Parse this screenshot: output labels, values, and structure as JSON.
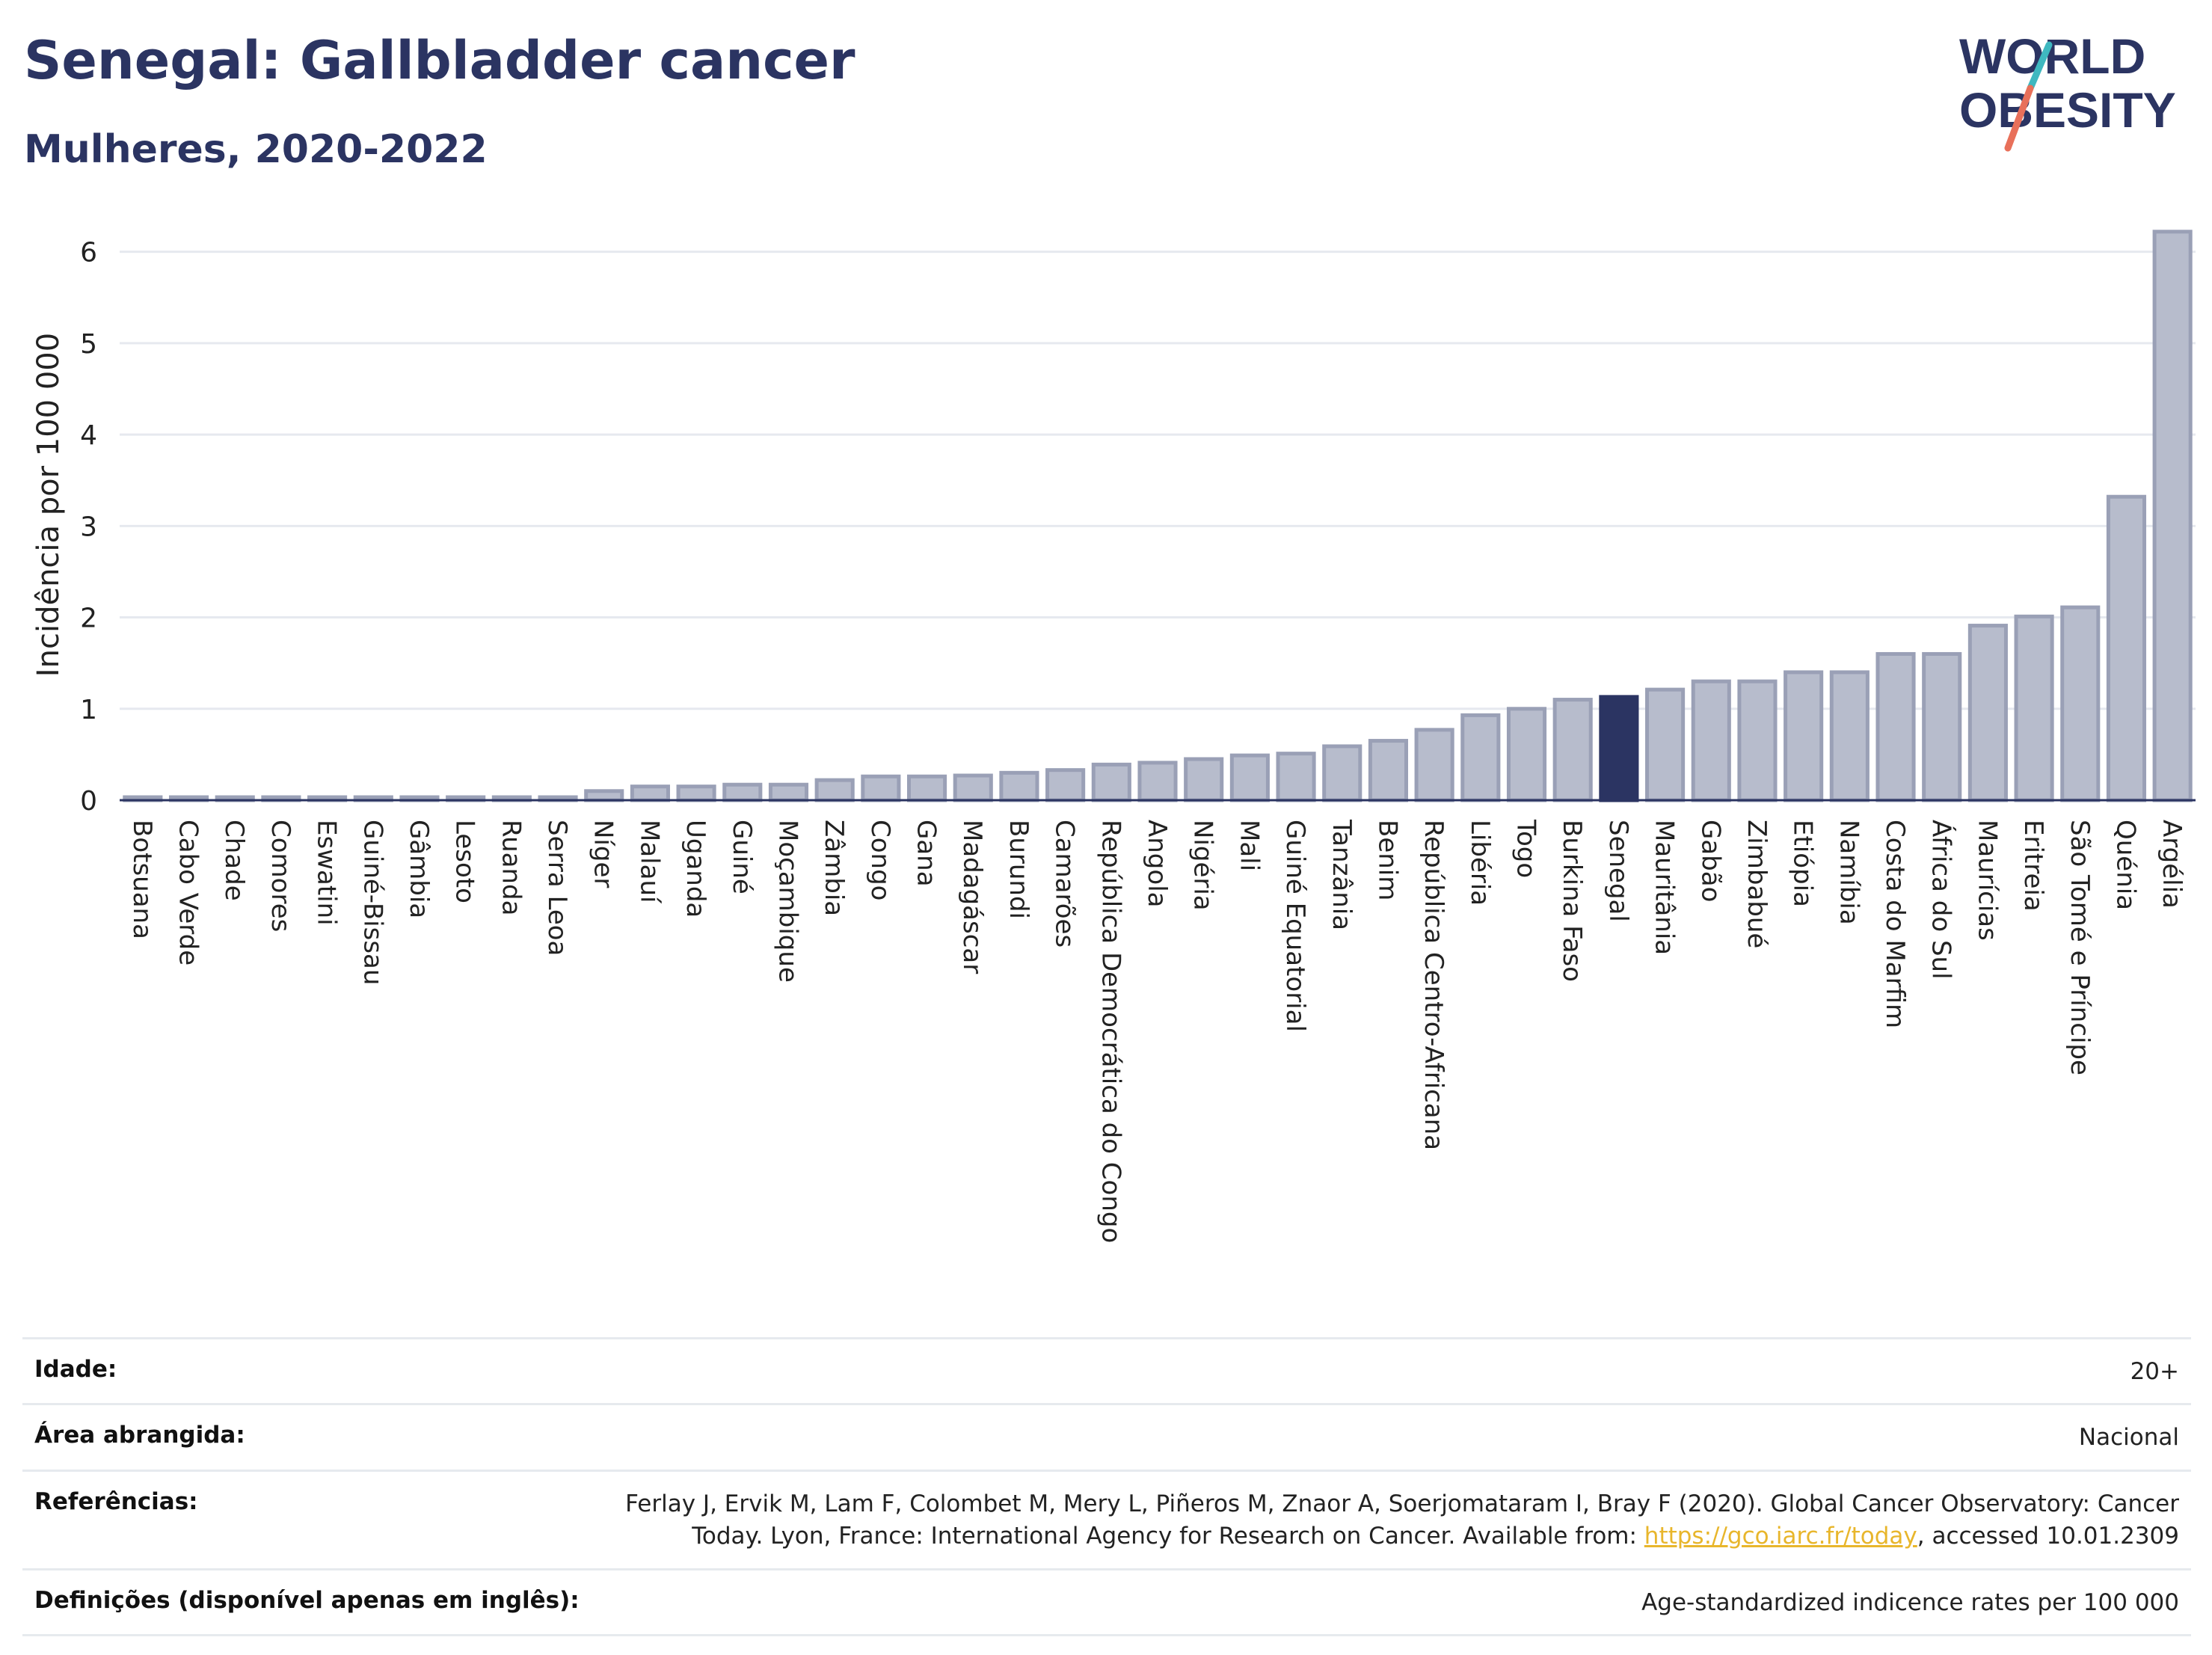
{
  "header": {
    "title": "Senegal: Gallbladder cancer",
    "subtitle": "Mulheres, 2020-2022"
  },
  "logo": {
    "line1": "WORLD",
    "line2": "OBESITY",
    "colors": {
      "text": "#2b3462",
      "slash_top": "#3fb8c0",
      "slash_bottom": "#e8705a"
    }
  },
  "chart_data": {
    "type": "bar",
    "ylabel": "Incidência por 100 000",
    "xlabel": "",
    "ylim": [
      0,
      6.3
    ],
    "yticks": [
      0,
      1,
      2,
      3,
      4,
      5,
      6
    ],
    "grid": true,
    "highlight": "Senegal",
    "colors": {
      "bar": "#b7bccc",
      "bar_border": "#9aa0b6",
      "highlight": "#2b3462",
      "highlight_border": "#2b3462",
      "grid": "#e6e9ef"
    },
    "categories": [
      "Botsuana",
      "Cabo Verde",
      "Chade",
      "Comores",
      "Eswatini",
      "Guiné-Bissau",
      "Gâmbia",
      "Lesoto",
      "Ruanda",
      "Serra Leoa",
      "Níger",
      "Malauí",
      "Uganda",
      "Guiné",
      "Moçambique",
      "Zâmbia",
      "Congo",
      "Gana",
      "Madagáscar",
      "Burundi",
      "Camarões",
      "República Democrática do Congo",
      "Angola",
      "Nigéria",
      "Mali",
      "Guiné Equatorial",
      "Tanzânia",
      "Benim",
      "República Centro-Africana",
      "Libéria",
      "Togo",
      "Burkina Faso",
      "Senegal",
      "Mauritânia",
      "Gabão",
      "Zimbabué",
      "Etiópia",
      "Namíbia",
      "Costa do Marfim",
      "África do Sul",
      "Maurícias",
      "Eritreia",
      "São Tomé e Príncipe",
      "Quénia",
      "Argélia"
    ],
    "values": [
      0.02,
      0.02,
      0.02,
      0.02,
      0.02,
      0.02,
      0.02,
      0.02,
      0.02,
      0.02,
      0.1,
      0.15,
      0.15,
      0.17,
      0.17,
      0.22,
      0.26,
      0.26,
      0.27,
      0.3,
      0.33,
      0.39,
      0.41,
      0.45,
      0.49,
      0.51,
      0.59,
      0.65,
      0.77,
      0.93,
      1.0,
      1.1,
      1.13,
      1.21,
      1.3,
      1.3,
      1.4,
      1.4,
      1.6,
      1.6,
      1.91,
      2.01,
      2.11,
      3.32,
      6.22
    ]
  },
  "info": {
    "rows": [
      {
        "label": "Idade:",
        "value": "20+"
      },
      {
        "label": "Área abrangida:",
        "value": "Nacional"
      },
      {
        "label": "Referências:",
        "value_line1": "Ferlay J, Ervik M, Lam F, Colombet M, Mery L, Piñeros M, Znaor A, Soerjomataram I, Bray F (2020). Global Cancer Observatory: Cancer",
        "value_line2_prefix": "Today. Lyon, France: International Agency for Research on Cancer. Available from: ",
        "link": "https://gco.iarc.fr/today",
        "value_line2_suffix": ", accessed 10.01.2309"
      },
      {
        "label": "Definições (disponível apenas em inglês):",
        "value": "Age-standardized indicence rates per 100 000"
      }
    ]
  }
}
